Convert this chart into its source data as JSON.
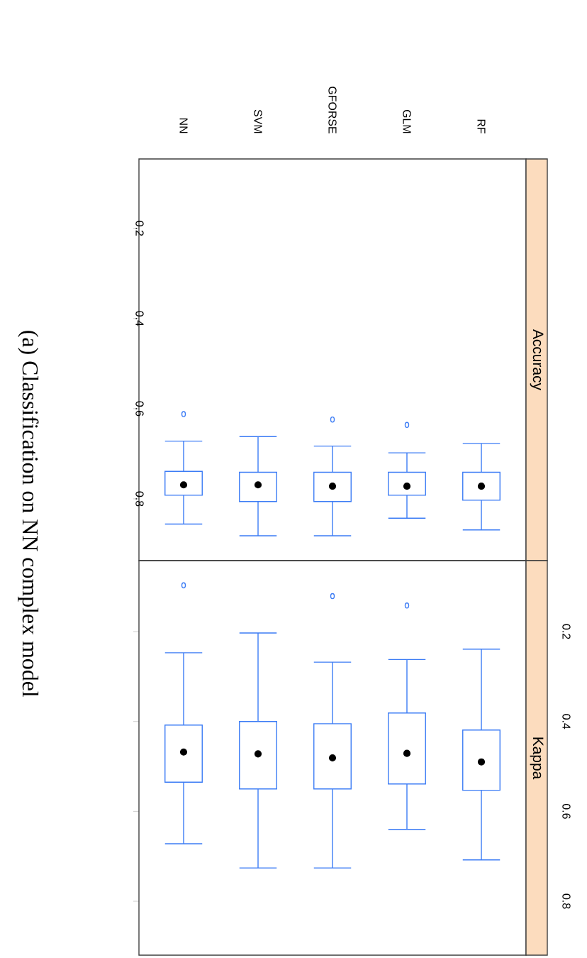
{
  "chart_data": [
    {
      "type": "box",
      "title": "Accuracy",
      "categories": [
        "NN",
        "SVM",
        "GFORSE",
        "GLM",
        "RF"
      ],
      "ylim": [
        0.937,
        0.046
      ],
      "yticks": [
        0.2,
        0.4,
        0.6,
        0.8
      ],
      "annotations": [
        "(a) Classification on NN complex model"
      ],
      "series": [
        {
          "color": "#3c7cf5",
          "boxes": [
            {
              "low": 0.672,
              "q1": 0.739,
              "median": 0.769,
              "q3": 0.792,
              "high": 0.856,
              "outliers": [
                0.612
              ]
            },
            {
              "low": 0.662,
              "q1": 0.741,
              "median": 0.769,
              "q3": 0.806,
              "high": 0.882
            },
            {
              "low": 0.683,
              "q1": 0.741,
              "median": 0.772,
              "q3": 0.806,
              "high": 0.882,
              "outliers": [
                0.624
              ]
            },
            {
              "low": 0.698,
              "q1": 0.741,
              "median": 0.772,
              "q3": 0.792,
              "high": 0.843,
              "outliers": [
                0.636
              ]
            },
            {
              "low": 0.677,
              "q1": 0.741,
              "median": 0.772,
              "q3": 0.803,
              "high": 0.869
            }
          ]
        }
      ]
    },
    {
      "type": "box",
      "title": "Kappa",
      "categories": [
        null,
        null,
        null,
        null,
        null
      ],
      "ylim": [
        0.92,
        0.042
      ],
      "yticks": [
        0.2,
        0.4,
        0.6,
        0.8
      ],
      "tick_labels": "y",
      "series": [
        {
          "color": "#3c7cf5",
          "boxes": [
            {
              "low": 0.247,
              "q1": 0.408,
              "median": 0.468,
              "q3": 0.535,
              "high": 0.672,
              "outliers": [
                0.097
              ]
            },
            {
              "low": 0.203,
              "q1": 0.4,
              "median": 0.472,
              "q3": 0.55,
              "high": 0.726
            },
            {
              "low": 0.268,
              "q1": 0.405,
              "median": 0.481,
              "q3": 0.55,
              "high": 0.726,
              "outliers": [
                0.121
              ]
            },
            {
              "low": 0.262,
              "q1": 0.381,
              "median": 0.471,
              "q3": 0.539,
              "high": 0.64,
              "outliers": [
                0.142
              ]
            },
            {
              "low": 0.239,
              "q1": 0.419,
              "median": 0.49,
              "q3": 0.553,
              "high": 0.708
            }
          ]
        }
      ]
    }
  ]
}
